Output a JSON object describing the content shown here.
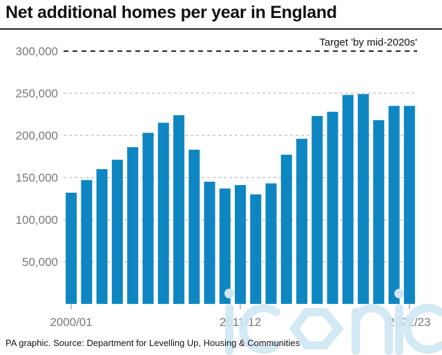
{
  "title": "Net additional homes per year in England",
  "source": "PA graphic. Source: Department for Levelling Up, Housing & Communities",
  "watermark": "iconic",
  "colors": {
    "bar": "#0e86c1",
    "text": "#111111",
    "axis_text": "#777777",
    "grid": "#aaaaaa",
    "watermark": "#cfe7f3"
  },
  "chart_data": {
    "type": "bar",
    "title": "Net additional homes per year in England",
    "xlabel": "",
    "ylabel": "",
    "ylim": [
      0,
      300000
    ],
    "yticks": [
      50000,
      100000,
      150000,
      200000,
      250000,
      300000
    ],
    "ytick_labels": [
      "50,000",
      "100,000",
      "150,000",
      "200,000",
      "250,000",
      "300,000"
    ],
    "grid": true,
    "categories": [
      "2000/01",
      "2001/02",
      "2002/03",
      "2003/04",
      "2004/05",
      "2005/06",
      "2006/07",
      "2007/08",
      "2008/09",
      "2009/10",
      "2010/11",
      "2011/12",
      "2012/13",
      "2013/14",
      "2014/15",
      "2015/16",
      "2016/17",
      "2017/18",
      "2018/19",
      "2019/20",
      "2020/21",
      "2021/22",
      "2022/23"
    ],
    "xtick_labels": [
      "2000/01",
      "2011/12",
      "2022/23"
    ],
    "values": [
      132000,
      147000,
      160000,
      171000,
      186000,
      203000,
      215000,
      224000,
      183000,
      145000,
      137000,
      141000,
      130000,
      143000,
      177000,
      196000,
      223000,
      228000,
      248000,
      249000,
      218000,
      235000,
      235000
    ],
    "annotations": [
      {
        "label": "Target 'by mid-2020s'",
        "y": 300000,
        "style": "dashed"
      }
    ]
  }
}
